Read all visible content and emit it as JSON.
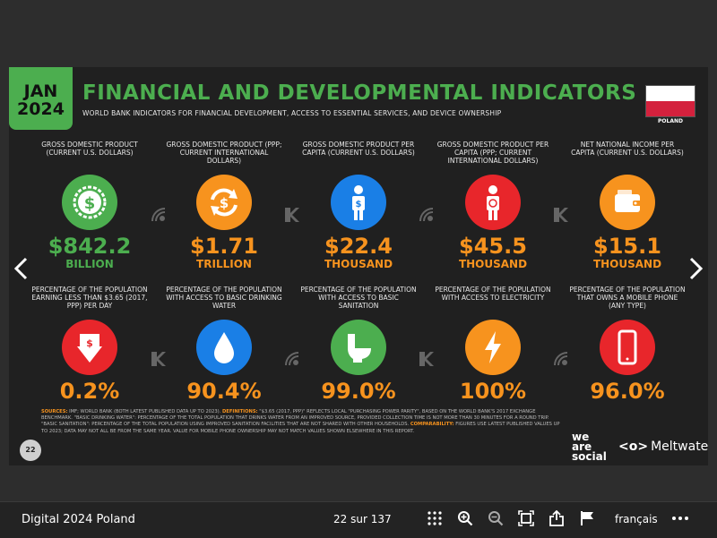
{
  "slide": {
    "date_month": "JAN",
    "date_year": "2024",
    "title": "FINANCIAL AND DEVELOPMENTAL INDICATORS",
    "subtitle": "WORLD BANK INDICATORS FOR FINANCIAL DEVELOPMENT, ACCESS TO ESSENTIAL SERVICES, AND DEVICE OWNERSHIP",
    "flag_label": "POLAND",
    "indicators_top": [
      {
        "label": "GROSS DOMESTIC PRODUCT (CURRENT U.S. DOLLARS)",
        "value": "$842.2",
        "unit": "BILLION",
        "color": "#4cae4f",
        "icon": "dollar-coin-icon"
      },
      {
        "label": "GROSS DOMESTIC PRODUCT (PPP; CURRENT INTERNATIONAL DOLLARS)",
        "value": "$1.71",
        "unit": "TRILLION",
        "color": "#f7931e",
        "icon": "currency-exchange-icon"
      },
      {
        "label": "GROSS DOMESTIC PRODUCT PER CAPITA (CURRENT U.S. DOLLARS)",
        "value": "$22.4",
        "unit": "THOUSAND",
        "color": "#1a7fe6",
        "icon": "person-dollar-icon"
      },
      {
        "label": "GROSS DOMESTIC PRODUCT PER CAPITA (PPP; CURRENT INTERNATIONAL DOLLARS)",
        "value": "$45.5",
        "unit": "THOUSAND",
        "color": "#e8262b",
        "icon": "person-exchange-icon"
      },
      {
        "label": "NET NATIONAL INCOME PER CAPITA (CURRENT U.S. DOLLARS)",
        "value": "$15.1",
        "unit": "THOUSAND",
        "color": "#f7931e",
        "icon": "wallet-icon"
      }
    ],
    "indicators_bottom": [
      {
        "label": "PERCENTAGE OF THE POPULATION EARNING LESS THAN $3.65 (2017, PPP) PER DAY",
        "value": "0.2%",
        "color": "#e8262b",
        "icon": "money-down-icon"
      },
      {
        "label": "PERCENTAGE OF THE POPULATION WITH ACCESS TO BASIC DRINKING WATER",
        "value": "90.4%",
        "color": "#1a7fe6",
        "icon": "water-drop-icon"
      },
      {
        "label": "PERCENTAGE OF THE POPULATION WITH ACCESS TO BASIC SANITATION",
        "value": "99.0%",
        "color": "#4cae4f",
        "icon": "toilet-icon"
      },
      {
        "label": "PERCENTAGE OF THE POPULATION WITH ACCESS TO ELECTRICITY",
        "value": "100%",
        "color": "#f7931e",
        "icon": "lightning-icon"
      },
      {
        "label": "PERCENTAGE OF THE POPULATION THAT OWNS A MOBILE PHONE (ANY TYPE)",
        "value": "96.0%",
        "color": "#e8262b",
        "icon": "mobile-phone-icon"
      }
    ],
    "footnote_sources_label": "SOURCES:",
    "footnote_sources": "IMF; WORLD BANK (BOTH LATEST PUBLISHED DATA UP TO 2023).",
    "footnote_definitions_label": "DEFINITIONS:",
    "footnote_definitions": "\"$3.65 (2017, PPP)\" REFLECTS LOCAL \"PURCHASING POWER PARITY\", BASED ON THE WORLD BANK'S 2017 EXCHANGE BENCHMARK. \"BASIC DRINKING WATER\": PERCENTAGE OF THE TOTAL POPULATION THAT DRINKS WATER FROM AN IMPROVED SOURCE, PROVIDED COLLECTION TIME IS NOT MORE THAN 30 MINUTES FOR A ROUND TRIP. \"BASIC SANITATION\": PERCENTAGE OF THE TOTAL POPULATION USING IMPROVED SANITATION FACILITIES THAT ARE NOT SHARED WITH OTHER HOUSEHOLDS.",
    "footnote_comparability_label": "COMPARABILITY:",
    "footnote_comparability": "FIGURES USE LATEST PUBLISHED VALUES UP TO 2023; DATA MAY NOT ALL BE FROM THE SAME YEAR. VALUE FOR MOBILE PHONE OWNERSHIP MAY NOT MATCH VALUES SHOWN ELSEWHERE IN THIS REPORT.",
    "page_number": "22",
    "brand_we": "we",
    "brand_are": "are",
    "brand_social": "social",
    "brand_meltwater": "Meltwater"
  },
  "toolbar": {
    "doc_title": "Digital 2024 Poland",
    "page_indicator": "22 sur 137",
    "language": "français"
  },
  "colors": {
    "green": "#4cae4f",
    "orange": "#f7931e",
    "blue": "#1a7fe6",
    "red": "#e8262b"
  }
}
